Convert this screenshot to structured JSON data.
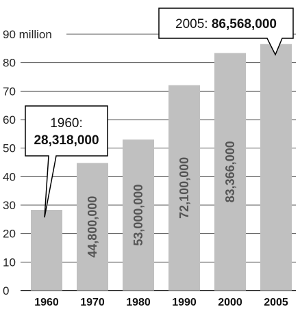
{
  "chart_data": {
    "type": "bar",
    "categories": [
      "1960",
      "1970",
      "1980",
      "1990",
      "2000",
      "2005"
    ],
    "values": [
      28318000,
      44800000,
      53000000,
      72100000,
      83366000,
      86568000
    ],
    "value_labels": [
      "",
      "44,800,000",
      "53,000,000",
      "72,100,000",
      "83,366,000",
      ""
    ],
    "y_ticks": [
      0,
      10,
      20,
      30,
      40,
      50,
      60,
      70,
      80,
      90
    ],
    "y_tick_labels": [
      "0",
      "10",
      "20",
      "30",
      "40",
      "50",
      "60",
      "70",
      "80",
      "90 million"
    ],
    "ylim": [
      0,
      90000000
    ],
    "grid": true,
    "bar_color": "#c0c0c0",
    "grid_color": "#555555",
    "callouts": [
      {
        "category": "1960",
        "text": "1960:",
        "bold": "28,318,000"
      },
      {
        "category": "2005",
        "text": "2005: ",
        "bold": "86,568,000"
      }
    ]
  }
}
